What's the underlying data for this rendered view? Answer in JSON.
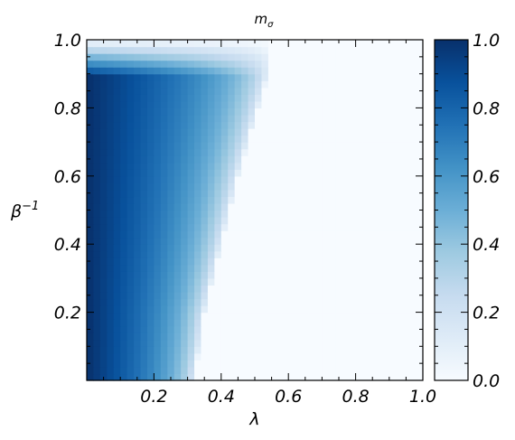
{
  "chart_data": {
    "type": "heatmap",
    "title": "m",
    "title_subscript": "σ",
    "xlabel": "λ",
    "ylabel": "β",
    "ylabel_superscript": "−1",
    "xlim": [
      0.0,
      1.0
    ],
    "ylim": [
      0.0,
      1.0
    ],
    "x_ticks": [
      "0.2",
      "0.4",
      "0.6",
      "0.8",
      "1.0"
    ],
    "y_ticks": [
      "0.2",
      "0.4",
      "0.6",
      "0.8",
      "1.0"
    ],
    "colorbar": {
      "colormap": "Blues",
      "range": [
        0.0,
        1.0
      ],
      "ticks": [
        "0.0",
        "0.2",
        "0.4",
        "0.6",
        "0.8",
        "1.0"
      ]
    },
    "grid": false,
    "grid_resolution": [
      50,
      50
    ],
    "boundary": {
      "description": "m_sigma ~ 1 at small λ, decreasing to 0 across a transition line",
      "beta_inv": [
        0.0,
        0.2,
        0.4,
        0.6,
        0.8,
        0.9,
        0.95,
        1.0
      ],
      "lambda_c": [
        0.32,
        0.35,
        0.4,
        0.45,
        0.51,
        0.54,
        0.55,
        0.55
      ]
    }
  }
}
